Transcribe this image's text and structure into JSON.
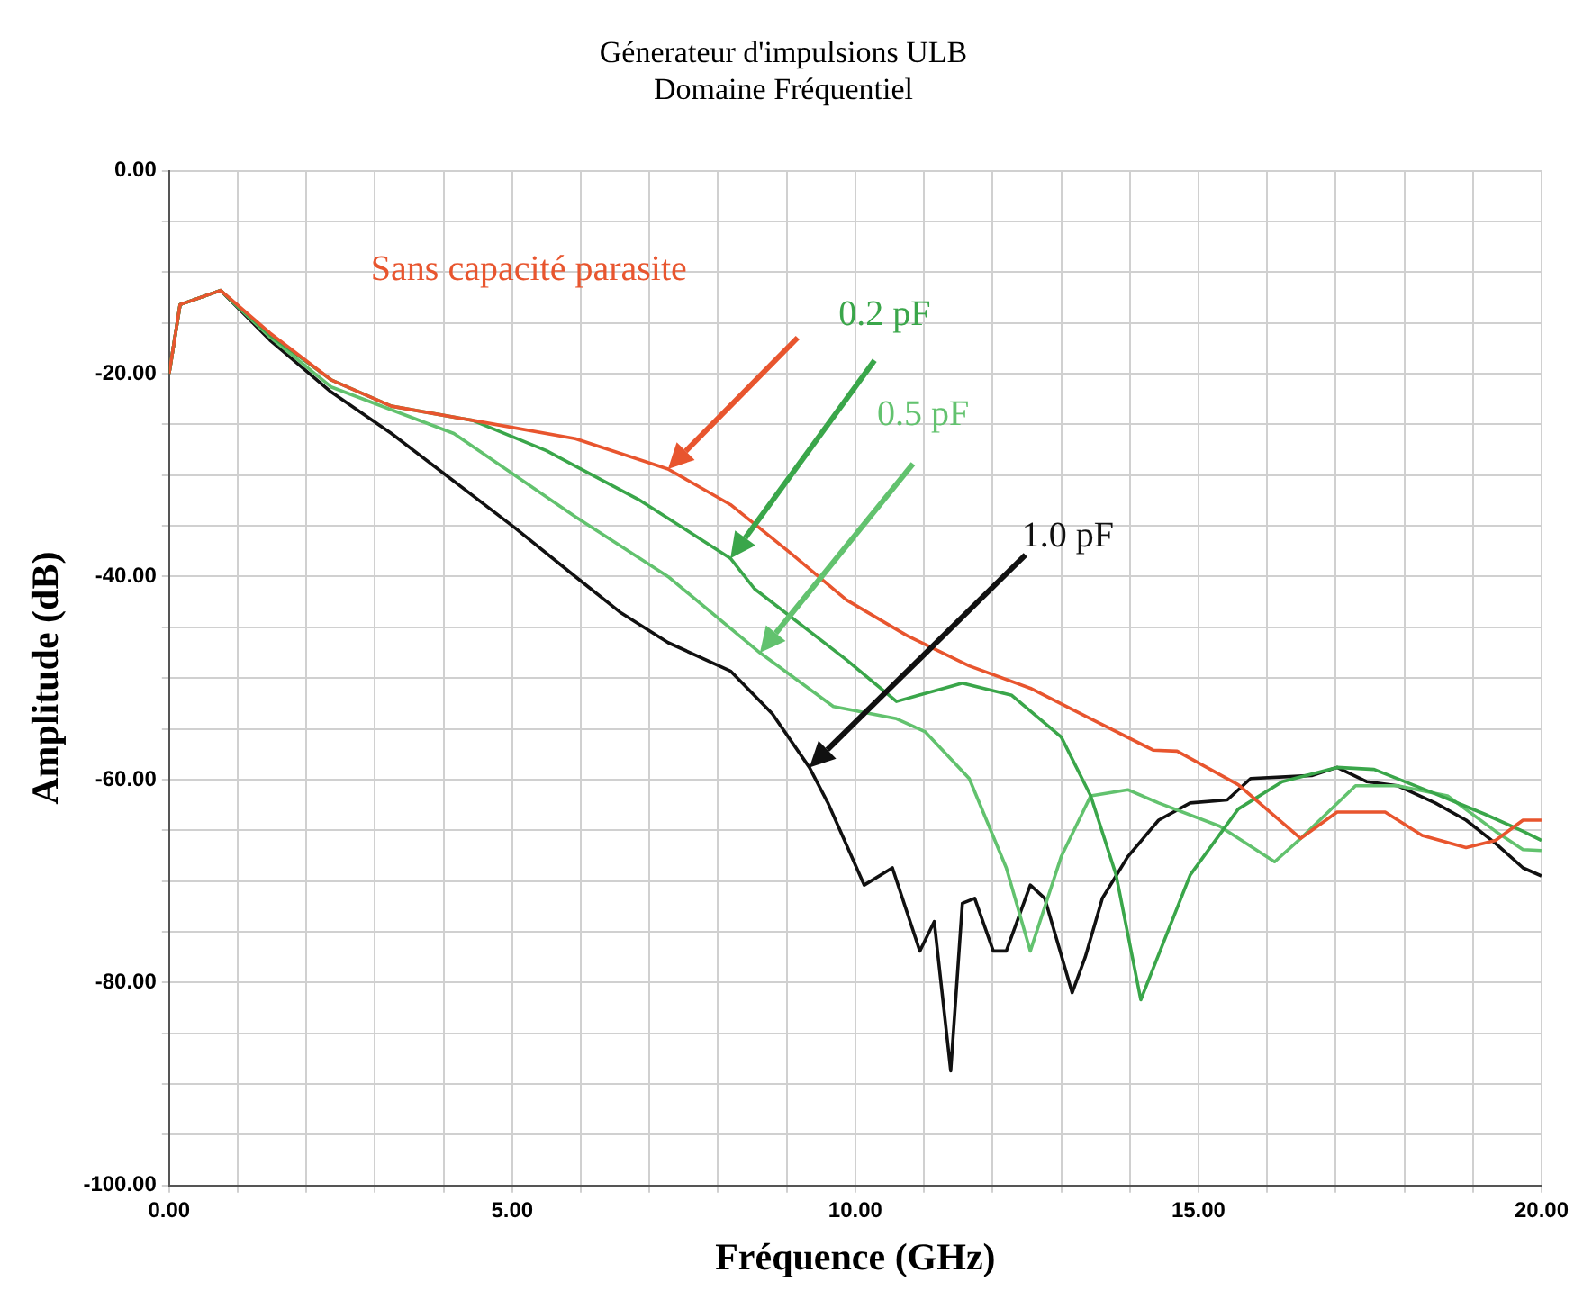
{
  "chart_data": {
    "type": "line",
    "title": "Génerateur d'impulsions ULB",
    "subtitle": "Domaine Fréquentiel",
    "xlabel": "Fréquence (GHz)",
    "ylabel": "Amplitude (dB)",
    "xlim": [
      0,
      20
    ],
    "ylim": [
      -100,
      0
    ],
    "xticks": [
      {
        "value": 0,
        "label": "0.00"
      },
      {
        "value": 1,
        "label": null
      },
      {
        "value": 2,
        "label": null
      },
      {
        "value": 3,
        "label": null
      },
      {
        "value": 4,
        "label": null
      },
      {
        "value": 5,
        "label": "5.00"
      },
      {
        "value": 6,
        "label": null
      },
      {
        "value": 7,
        "label": null
      },
      {
        "value": 8,
        "label": null
      },
      {
        "value": 9,
        "label": null
      },
      {
        "value": 10,
        "label": "10.00"
      },
      {
        "value": 11,
        "label": null
      },
      {
        "value": 12,
        "label": null
      },
      {
        "value": 13,
        "label": null
      },
      {
        "value": 14,
        "label": null
      },
      {
        "value": 15,
        "label": "15.00"
      },
      {
        "value": 16,
        "label": null
      },
      {
        "value": 17,
        "label": null
      },
      {
        "value": 18,
        "label": null
      },
      {
        "value": 19,
        "label": null
      },
      {
        "value": 20,
        "label": "20.00"
      }
    ],
    "yticks": [
      {
        "value": -100,
        "label": "-100.00"
      },
      {
        "value": -95,
        "label": null
      },
      {
        "value": -90,
        "label": null
      },
      {
        "value": -85,
        "label": null
      },
      {
        "value": -80,
        "label": "-80.00"
      },
      {
        "value": -75,
        "label": null
      },
      {
        "value": -70,
        "label": null
      },
      {
        "value": -65,
        "label": null
      },
      {
        "value": -60,
        "label": "-60.00"
      },
      {
        "value": -55,
        "label": null
      },
      {
        "value": -50,
        "label": null
      },
      {
        "value": -45,
        "label": null
      },
      {
        "value": -40,
        "label": "-40.00"
      },
      {
        "value": -35,
        "label": null
      },
      {
        "value": -30,
        "label": null
      },
      {
        "value": -25,
        "label": null
      },
      {
        "value": -20,
        "label": "-20.00"
      },
      {
        "value": -15,
        "label": null
      },
      {
        "value": -10,
        "label": null
      },
      {
        "value": -5,
        "label": null
      },
      {
        "value": 0,
        "label": "0.00"
      }
    ],
    "grid": true,
    "legend": false,
    "marker": "none",
    "line_style": "solid",
    "series": [
      {
        "name": "Sans capacité parasite",
        "color": "#e8552e",
        "x": [
          0,
          0.16,
          0.75,
          1.47,
          2.36,
          3.24,
          4.42,
          5.92,
          7.27,
          8.18,
          9.06,
          9.87,
          10.75,
          11.66,
          12.55,
          13.43,
          14.34,
          14.69,
          15.58,
          16.49,
          17.02,
          17.72,
          18.26,
          18.9,
          19.33,
          19.73,
          20
        ],
        "values": [
          -20,
          -13.2,
          -11.8,
          -16,
          -20.6,
          -23.2,
          -24.6,
          -26.4,
          -29.4,
          -32.9,
          -37.7,
          -42.3,
          -45.8,
          -48.8,
          -51,
          -54,
          -57.1,
          -57.2,
          -60.5,
          -65.8,
          -63.2,
          -63.2,
          -65.5,
          -66.7,
          -66,
          -64,
          -64
        ]
      },
      {
        "name": "0.2 pF",
        "color": "#3aa64a",
        "x": [
          0,
          0.16,
          0.75,
          1.47,
          2.36,
          3.24,
          4.42,
          5.5,
          6.84,
          8.18,
          8.53,
          9.87,
          10.6,
          11.56,
          12.28,
          13,
          13.43,
          13.8,
          14.16,
          14.88,
          15.58,
          16.22,
          17.02,
          17.56,
          18.45,
          19.17,
          19.73,
          20
        ],
        "values": [
          -20,
          -13.2,
          -11.8,
          -16.2,
          -20.6,
          -23.2,
          -24.6,
          -27.6,
          -32.4,
          -38.2,
          -41.2,
          -48.2,
          -52.3,
          -50.5,
          -51.7,
          -55.8,
          -61.6,
          -69.4,
          -81.7,
          -69.4,
          -62.9,
          -60.2,
          -58.8,
          -59,
          -61.4,
          -63.4,
          -65.1,
          -66
        ]
      },
      {
        "name": "0.5 pF",
        "color": "#62c26e",
        "x": [
          0,
          0.16,
          0.75,
          1.47,
          2.36,
          4.15,
          5.92,
          7.27,
          8.61,
          9.68,
          10.6,
          11.02,
          11.66,
          12.2,
          12.55,
          13,
          13.43,
          13.97,
          14.42,
          15.31,
          16.11,
          16.49,
          17.29,
          17.9,
          18.63,
          19.33,
          19.73,
          20
        ],
        "values": [
          -20,
          -13.2,
          -11.8,
          -16.4,
          -21.3,
          -25.9,
          -34.1,
          -40,
          -47.5,
          -52.8,
          -54,
          -55.3,
          -59.9,
          -68.7,
          -76.9,
          -67.6,
          -61.6,
          -61,
          -62.3,
          -64.6,
          -68.1,
          -65.8,
          -60.6,
          -60.6,
          -61.6,
          -65.1,
          -66.9,
          -67
        ]
      },
      {
        "name": "1.0 pF",
        "color": "#111111",
        "x": [
          0,
          0.16,
          0.75,
          1.47,
          2.36,
          3.24,
          4.15,
          5.04,
          5.92,
          6.57,
          7.27,
          8.18,
          8.79,
          9.33,
          9.6,
          10.13,
          10.54,
          10.94,
          11.15,
          11.39,
          11.56,
          11.74,
          12.01,
          12.2,
          12.55,
          12.76,
          13.16,
          13.35,
          13.6,
          13.97,
          14.42,
          14.88,
          15.42,
          15.76,
          16.65,
          17.02,
          17.45,
          17.9,
          18.45,
          18.9,
          19.33,
          19.73,
          20
        ],
        "values": [
          -20,
          -13.2,
          -11.8,
          -16.7,
          -21.8,
          -25.9,
          -30.6,
          -35.2,
          -40,
          -43.5,
          -46.5,
          -49.3,
          -53.5,
          -58.8,
          -62.3,
          -70.4,
          -68.7,
          -76.9,
          -74,
          -88.7,
          -72.2,
          -71.7,
          -76.9,
          -76.9,
          -70.4,
          -71.7,
          -81,
          -77.5,
          -71.7,
          -67.6,
          -64,
          -62.3,
          -62,
          -59.9,
          -59.6,
          -58.8,
          -60.2,
          -60.6,
          -62.3,
          -64,
          -66.3,
          -68.7,
          -69.5
        ]
      }
    ]
  }
}
